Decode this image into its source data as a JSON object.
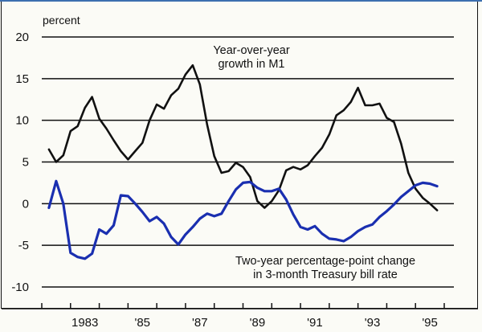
{
  "chart_data": {
    "type": "line",
    "title": "",
    "ylabel": "percent",
    "xlabel": "",
    "ylim": [
      -10,
      20
    ],
    "yticks": [
      20,
      15,
      10,
      5,
      0,
      -5,
      -10
    ],
    "ytick_labels": [
      "20",
      "15",
      "10",
      "5",
      "0",
      "-5",
      "-10"
    ],
    "xlim": [
      1982,
      1996
    ],
    "xtick_boundaries": [
      1982,
      1983,
      1984,
      1985,
      1986,
      1987,
      1988,
      1989,
      1990,
      1991,
      1992,
      1993,
      1994,
      1995,
      1996
    ],
    "xtick_labels": [
      {
        "year": 1983,
        "label": "1983"
      },
      {
        "year": 1985,
        "label": "'85"
      },
      {
        "year": 1987,
        "label": "'87"
      },
      {
        "year": 1989,
        "label": "'89"
      },
      {
        "year": 1991,
        "label": "'91"
      },
      {
        "year": 1993,
        "label": "'93"
      },
      {
        "year": 1995,
        "label": "'95"
      }
    ],
    "grid": true,
    "x_start": 1982.25,
    "x_step": 0.25,
    "series": [
      {
        "name": "Year-over-year growth in M1",
        "label_lines": [
          "Year-over-year",
          "growth in M1"
        ],
        "color": "#111111",
        "values": [
          6.5,
          5.0,
          5.8,
          8.7,
          9.3,
          11.5,
          12.8,
          10.2,
          9.0,
          7.6,
          6.3,
          5.3,
          6.3,
          7.3,
          10.0,
          11.9,
          11.4,
          13.0,
          13.8,
          15.5,
          16.6,
          14.3,
          9.5,
          5.7,
          3.7,
          3.9,
          4.9,
          4.4,
          3.2,
          0.3,
          -0.5,
          0.3,
          1.6,
          4.0,
          4.4,
          4.1,
          4.6,
          5.7,
          6.7,
          8.3,
          10.6,
          11.2,
          12.2,
          13.9,
          11.8,
          11.8,
          12.0,
          10.3,
          9.8,
          7.2,
          3.7,
          1.8,
          0.7,
          0.0,
          -0.8
        ]
      },
      {
        "name": "Two-year percentage-point change in 3-month Treasury bill rate",
        "label_lines": [
          "Two-year percentage-point change",
          "in 3-month Treasury bill rate"
        ],
        "color": "#1a2fb0",
        "values": [
          -0.5,
          2.7,
          0.0,
          -5.9,
          -6.4,
          -6.6,
          -6.0,
          -3.1,
          -3.6,
          -2.6,
          1.0,
          0.9,
          0.0,
          -1.0,
          -2.1,
          -1.6,
          -2.4,
          -4.0,
          -4.9,
          -3.7,
          -2.8,
          -1.8,
          -1.2,
          -1.5,
          -1.2,
          0.3,
          1.7,
          2.5,
          2.6,
          1.9,
          1.5,
          1.5,
          1.8,
          0.5,
          -1.3,
          -2.8,
          -3.1,
          -2.7,
          -3.6,
          -4.2,
          -4.3,
          -4.5,
          -4.0,
          -3.3,
          -2.8,
          -2.5,
          -1.6,
          -0.9,
          -0.1,
          0.8,
          1.5,
          2.2,
          2.5,
          2.4,
          2.1
        ]
      }
    ]
  }
}
